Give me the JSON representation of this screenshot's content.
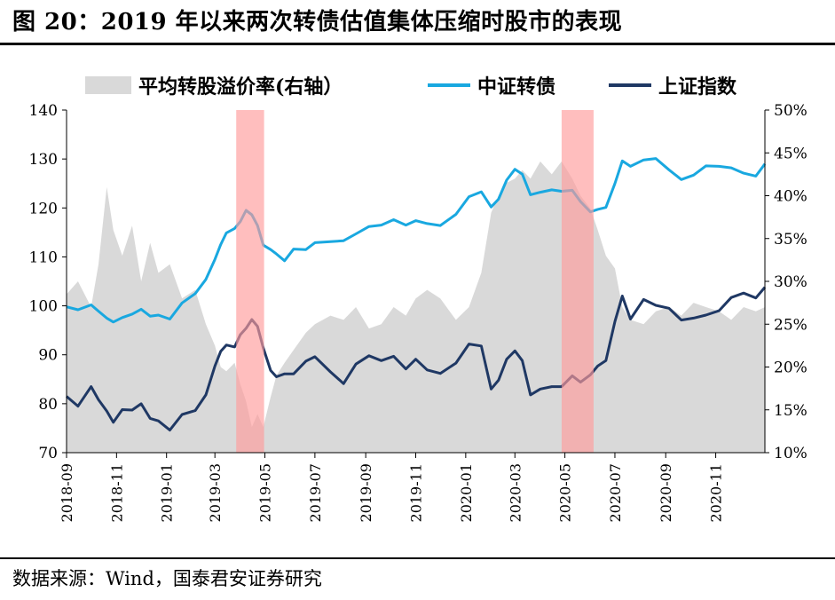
{
  "title": "图 20：2019 年以来两次转债估值集体压缩时股市的表现",
  "source": "数据来源：Wind，国泰君安证券研究",
  "chart_data": {
    "type": "line",
    "legend_position": "top",
    "legend": [
      {
        "label": "平均转股溢价率(右轴）",
        "kind": "area",
        "color": "#d9d9d9"
      },
      {
        "label": "中证转债",
        "kind": "line",
        "color": "#19a8e0"
      },
      {
        "label": "上证指数",
        "kind": "line",
        "color": "#1f3864"
      }
    ],
    "x_ticks": [
      "2018-09",
      "2018-11",
      "2019-01",
      "2019-03",
      "2019-05",
      "2019-07",
      "2019-09",
      "2019-11",
      "2020-01",
      "2020-03",
      "2020-05",
      "2020-07",
      "2020-09",
      "2020-11"
    ],
    "x_range": [
      "2018-09-01",
      "2020-12-31"
    ],
    "y_left": {
      "range": [
        70,
        140
      ],
      "ticks": [
        "70",
        "80",
        "90",
        "100",
        "110",
        "120",
        "130",
        "140"
      ]
    },
    "y_right": {
      "range": [
        10,
        50
      ],
      "ticks": [
        "10%",
        "15%",
        "20%",
        "25%",
        "30%",
        "35%",
        "40%",
        "45%",
        "50%"
      ]
    },
    "shaded_periods": [
      {
        "start": "2019-03-27",
        "end": "2019-04-30",
        "color": "#ff9b9b"
      },
      {
        "start": "2020-04-27",
        "end": "2020-06-05",
        "color": "#ff9b9b"
      }
    ],
    "series": [
      {
        "name": "平均转股溢价率(右轴）",
        "axis": "right",
        "color": "#d9d9d9",
        "points": [
          [
            "2018-09-01",
            28.5
          ],
          [
            "2018-09-15",
            30
          ],
          [
            "2018-10-01",
            27
          ],
          [
            "2018-10-10",
            32
          ],
          [
            "2018-10-20",
            41
          ],
          [
            "2018-10-28",
            36
          ],
          [
            "2018-11-08",
            33
          ],
          [
            "2018-11-20",
            36.5
          ],
          [
            "2018-12-01",
            30
          ],
          [
            "2018-12-12",
            34.5
          ],
          [
            "2018-12-22",
            31
          ],
          [
            "2019-01-05",
            32
          ],
          [
            "2019-01-20",
            28
          ],
          [
            "2019-02-05",
            29
          ],
          [
            "2019-02-18",
            25
          ],
          [
            "2019-03-01",
            22.5
          ],
          [
            "2019-03-08",
            20
          ],
          [
            "2019-03-15",
            19.5
          ],
          [
            "2019-03-25",
            20.5
          ],
          [
            "2019-04-01",
            18
          ],
          [
            "2019-04-08",
            16
          ],
          [
            "2019-04-15",
            13
          ],
          [
            "2019-04-22",
            14.5
          ],
          [
            "2019-04-29",
            13
          ],
          [
            "2019-05-08",
            16.5
          ],
          [
            "2019-05-15",
            19
          ],
          [
            "2019-05-25",
            20.5
          ],
          [
            "2019-06-05",
            22
          ],
          [
            "2019-06-20",
            24
          ],
          [
            "2019-07-01",
            25
          ],
          [
            "2019-07-20",
            26
          ],
          [
            "2019-08-05",
            25.5
          ],
          [
            "2019-08-20",
            27
          ],
          [
            "2019-09-05",
            24.5
          ],
          [
            "2019-09-20",
            25
          ],
          [
            "2019-10-05",
            27
          ],
          [
            "2019-10-20",
            26
          ],
          [
            "2019-11-01",
            28
          ],
          [
            "2019-11-15",
            29
          ],
          [
            "2019-12-01",
            28
          ],
          [
            "2019-12-20",
            25.5
          ],
          [
            "2020-01-05",
            27
          ],
          [
            "2020-01-20",
            31
          ],
          [
            "2020-02-01",
            38
          ],
          [
            "2020-02-10",
            40
          ],
          [
            "2020-02-20",
            41.5
          ],
          [
            "2020-03-01",
            42
          ],
          [
            "2020-03-10",
            43
          ],
          [
            "2020-03-20",
            42
          ],
          [
            "2020-04-01",
            44
          ],
          [
            "2020-04-15",
            42.5
          ],
          [
            "2020-04-27",
            44
          ],
          [
            "2020-05-10",
            42
          ],
          [
            "2020-05-20",
            40
          ],
          [
            "2020-06-01",
            38.5
          ],
          [
            "2020-06-10",
            36
          ],
          [
            "2020-06-20",
            33
          ],
          [
            "2020-07-01",
            31.5
          ],
          [
            "2020-07-10",
            27
          ],
          [
            "2020-07-20",
            25.5
          ],
          [
            "2020-08-05",
            25
          ],
          [
            "2020-08-20",
            26.5
          ],
          [
            "2020-09-05",
            27
          ],
          [
            "2020-09-20",
            26
          ],
          [
            "2020-10-05",
            27.5
          ],
          [
            "2020-10-20",
            27
          ],
          [
            "2020-11-05",
            26.5
          ],
          [
            "2020-11-20",
            25.5
          ],
          [
            "2020-12-05",
            27
          ],
          [
            "2020-12-20",
            26.5
          ],
          [
            "2020-12-31",
            27
          ]
        ]
      },
      {
        "name": "中证转债",
        "axis": "left",
        "color": "#19a8e0",
        "points": [
          [
            "2018-09-01",
            99.8
          ],
          [
            "2018-09-15",
            99.2
          ],
          [
            "2018-10-01",
            100.2
          ],
          [
            "2018-10-10",
            98.9
          ],
          [
            "2018-10-20",
            97.5
          ],
          [
            "2018-10-28",
            96.7
          ],
          [
            "2018-11-08",
            97.6
          ],
          [
            "2018-11-20",
            98.3
          ],
          [
            "2018-12-01",
            99.3
          ],
          [
            "2018-12-12",
            97.9
          ],
          [
            "2018-12-22",
            98.1
          ],
          [
            "2019-01-05",
            97.3
          ],
          [
            "2019-01-20",
            100.6
          ],
          [
            "2019-02-05",
            102.5
          ],
          [
            "2019-02-18",
            105.4
          ],
          [
            "2019-03-01",
            109.5
          ],
          [
            "2019-03-08",
            112.5
          ],
          [
            "2019-03-15",
            114.9
          ],
          [
            "2019-03-25",
            115.8
          ],
          [
            "2019-04-01",
            117.2
          ],
          [
            "2019-04-08",
            119.5
          ],
          [
            "2019-04-15",
            118.6
          ],
          [
            "2019-04-22",
            116.4
          ],
          [
            "2019-04-29",
            112.4
          ],
          [
            "2019-05-08",
            111.5
          ],
          [
            "2019-05-15",
            110.6
          ],
          [
            "2019-05-25",
            109.2
          ],
          [
            "2019-06-05",
            111.6
          ],
          [
            "2019-06-20",
            111.5
          ],
          [
            "2019-07-01",
            112.9
          ],
          [
            "2019-07-20",
            113.1
          ],
          [
            "2019-08-05",
            113.3
          ],
          [
            "2019-08-20",
            114.7
          ],
          [
            "2019-09-05",
            116.2
          ],
          [
            "2019-09-20",
            116.5
          ],
          [
            "2019-10-05",
            117.6
          ],
          [
            "2019-10-20",
            116.5
          ],
          [
            "2019-11-01",
            117.4
          ],
          [
            "2019-11-15",
            116.8
          ],
          [
            "2019-12-01",
            116.4
          ],
          [
            "2019-12-20",
            118.7
          ],
          [
            "2020-01-05",
            122.3
          ],
          [
            "2020-01-20",
            123.3
          ],
          [
            "2020-02-01",
            120.2
          ],
          [
            "2020-02-10",
            121.8
          ],
          [
            "2020-02-20",
            125.7
          ],
          [
            "2020-03-01",
            127.9
          ],
          [
            "2020-03-10",
            126.9
          ],
          [
            "2020-03-20",
            122.7
          ],
          [
            "2020-04-01",
            123.2
          ],
          [
            "2020-04-15",
            123.7
          ],
          [
            "2020-04-27",
            123.4
          ],
          [
            "2020-05-10",
            123.6
          ],
          [
            "2020-05-20",
            121.3
          ],
          [
            "2020-06-01",
            119.2
          ],
          [
            "2020-06-10",
            119.7
          ],
          [
            "2020-06-20",
            120.1
          ],
          [
            "2020-07-01",
            125.0
          ],
          [
            "2020-07-10",
            129.6
          ],
          [
            "2020-07-20",
            128.5
          ],
          [
            "2020-08-05",
            129.8
          ],
          [
            "2020-08-20",
            130.1
          ],
          [
            "2020-09-05",
            127.8
          ],
          [
            "2020-09-20",
            125.8
          ],
          [
            "2020-10-05",
            126.7
          ],
          [
            "2020-10-20",
            128.6
          ],
          [
            "2020-11-05",
            128.5
          ],
          [
            "2020-11-20",
            128.2
          ],
          [
            "2020-12-05",
            127.1
          ],
          [
            "2020-12-20",
            126.5
          ],
          [
            "2020-12-31",
            129.0
          ]
        ]
      },
      {
        "name": "上证指数",
        "axis": "left",
        "color": "#1f3864",
        "points": [
          [
            "2018-09-01",
            81.5
          ],
          [
            "2018-09-15",
            79.5
          ],
          [
            "2018-10-01",
            83.5
          ],
          [
            "2018-10-10",
            80.8
          ],
          [
            "2018-10-20",
            78.5
          ],
          [
            "2018-10-28",
            76.2
          ],
          [
            "2018-11-08",
            78.8
          ],
          [
            "2018-11-20",
            78.7
          ],
          [
            "2018-12-01",
            80.0
          ],
          [
            "2018-12-12",
            77.0
          ],
          [
            "2018-12-22",
            76.5
          ],
          [
            "2019-01-05",
            74.6
          ],
          [
            "2019-01-20",
            77.8
          ],
          [
            "2019-02-05",
            78.6
          ],
          [
            "2019-02-18",
            81.8
          ],
          [
            "2019-03-01",
            87.7
          ],
          [
            "2019-03-08",
            90.7
          ],
          [
            "2019-03-15",
            92.0
          ],
          [
            "2019-03-25",
            91.6
          ],
          [
            "2019-04-01",
            94.1
          ],
          [
            "2019-04-08",
            95.4
          ],
          [
            "2019-04-15",
            97.2
          ],
          [
            "2019-04-22",
            95.8
          ],
          [
            "2019-04-29",
            91.4
          ],
          [
            "2019-05-08",
            86.8
          ],
          [
            "2019-05-15",
            85.5
          ],
          [
            "2019-05-25",
            86.1
          ],
          [
            "2019-06-05",
            86.1
          ],
          [
            "2019-06-20",
            88.7
          ],
          [
            "2019-07-01",
            89.6
          ],
          [
            "2019-07-20",
            86.5
          ],
          [
            "2019-08-05",
            84.1
          ],
          [
            "2019-08-20",
            88.1
          ],
          [
            "2019-09-05",
            89.8
          ],
          [
            "2019-09-20",
            88.8
          ],
          [
            "2019-10-05",
            89.7
          ],
          [
            "2019-10-20",
            87.1
          ],
          [
            "2019-11-01",
            89.1
          ],
          [
            "2019-11-15",
            86.9
          ],
          [
            "2019-12-01",
            86.2
          ],
          [
            "2019-12-20",
            88.3
          ],
          [
            "2020-01-05",
            92.2
          ],
          [
            "2020-01-20",
            91.8
          ],
          [
            "2020-02-01",
            83.0
          ],
          [
            "2020-02-10",
            84.8
          ],
          [
            "2020-02-20",
            89.1
          ],
          [
            "2020-03-01",
            90.8
          ],
          [
            "2020-03-10",
            88.8
          ],
          [
            "2020-03-20",
            81.8
          ],
          [
            "2020-04-01",
            83.0
          ],
          [
            "2020-04-15",
            83.5
          ],
          [
            "2020-04-27",
            83.5
          ],
          [
            "2020-05-10",
            85.7
          ],
          [
            "2020-05-20",
            84.4
          ],
          [
            "2020-06-01",
            85.9
          ],
          [
            "2020-06-10",
            87.7
          ],
          [
            "2020-06-20",
            88.8
          ],
          [
            "2020-07-01",
            96.8
          ],
          [
            "2020-07-10",
            102.0
          ],
          [
            "2020-07-20",
            97.3
          ],
          [
            "2020-08-05",
            101.3
          ],
          [
            "2020-08-20",
            100.1
          ],
          [
            "2020-09-05",
            99.5
          ],
          [
            "2020-09-20",
            97.1
          ],
          [
            "2020-10-05",
            97.5
          ],
          [
            "2020-10-20",
            98.1
          ],
          [
            "2020-11-05",
            99.0
          ],
          [
            "2020-11-20",
            101.7
          ],
          [
            "2020-12-05",
            102.6
          ],
          [
            "2020-12-20",
            101.6
          ],
          [
            "2020-12-31",
            103.8
          ]
        ]
      }
    ]
  }
}
